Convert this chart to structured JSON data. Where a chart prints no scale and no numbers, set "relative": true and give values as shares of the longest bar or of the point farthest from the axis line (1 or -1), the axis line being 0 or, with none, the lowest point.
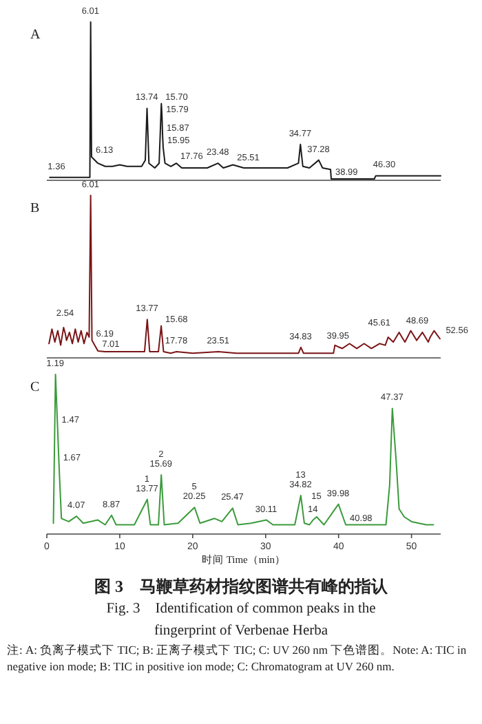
{
  "chart_data": [
    {
      "type": "line",
      "title": "A",
      "relative": true,
      "xlim": [
        0,
        54
      ],
      "tick_labels": false,
      "series": [
        {
          "color": "#1a1a1a",
          "x": [
            0.4,
            1.36,
            5.85,
            5.9,
            6.01,
            6.13,
            7,
            8,
            9,
            10,
            11,
            12,
            13,
            13.5,
            13.74,
            14.0,
            14.8,
            15.4,
            15.7,
            15.79,
            15.87,
            15.95,
            16.2,
            17,
            17.76,
            18.5,
            20,
            22,
            23.48,
            24.2,
            25.51,
            27,
            30,
            33,
            34.5,
            34.77,
            35.1,
            36,
            37.28,
            37.8,
            38.9,
            38.99,
            44.9,
            45.1,
            46.3,
            54
          ],
          "values": [
            0.01,
            0.01,
            0.01,
            0.01,
            1.0,
            0.14,
            0.1,
            0.08,
            0.08,
            0.09,
            0.08,
            0.08,
            0.08,
            0.12,
            0.45,
            0.1,
            0.07,
            0.1,
            0.48,
            0.4,
            0.28,
            0.2,
            0.1,
            0.08,
            0.1,
            0.07,
            0.07,
            0.07,
            0.1,
            0.07,
            0.09,
            0.07,
            0.07,
            0.07,
            0.1,
            0.22,
            0.08,
            0.07,
            0.12,
            0.07,
            0.06,
            0.0,
            0.0,
            0.02,
            0.02,
            0.02
          ]
        }
      ],
      "annotations": [
        {
          "text": "6.01",
          "x": 6.01,
          "y": 1.0
        },
        {
          "text": "1.36",
          "x": 1.36,
          "y": 0.01
        },
        {
          "text": "6.13",
          "x": 6.13,
          "y": 0.14
        },
        {
          "text": "13.74",
          "x": 13.74,
          "y": 0.45
        },
        {
          "text": "15.70",
          "x": 15.7,
          "y": 0.48
        },
        {
          "text": "15.79",
          "x": 15.79,
          "y": 0.4
        },
        {
          "text": "15.87",
          "x": 15.87,
          "y": 0.28
        },
        {
          "text": "15.95",
          "x": 15.95,
          "y": 0.2
        },
        {
          "text": "17.76",
          "x": 17.76,
          "y": 0.1
        },
        {
          "text": "23.48",
          "x": 23.48,
          "y": 0.1
        },
        {
          "text": "25.51",
          "x": 25.51,
          "y": 0.09
        },
        {
          "text": "34.77",
          "x": 34.77,
          "y": 0.22
        },
        {
          "text": "37.28",
          "x": 37.28,
          "y": 0.12
        },
        {
          "text": "38.99",
          "x": 38.99,
          "y": 0.0
        },
        {
          "text": "46.30",
          "x": 46.3,
          "y": 0.02
        }
      ]
    },
    {
      "type": "line",
      "title": "B",
      "relative": true,
      "xlim": [
        0,
        54
      ],
      "tick_labels": false,
      "series": [
        {
          "color": "#7a1416",
          "x": [
            0.3,
            0.7,
            1.1,
            1.5,
            1.9,
            2.3,
            2.54,
            2.7,
            3.1,
            3.5,
            3.9,
            4.3,
            4.7,
            5.1,
            5.5,
            5.8,
            6.01,
            6.19,
            7.01,
            8,
            10,
            12,
            13.4,
            13.77,
            14.1,
            15.3,
            15.68,
            16.0,
            17,
            17.78,
            20,
            23.51,
            26,
            30,
            34.5,
            34.83,
            35.2,
            38,
            39.3,
            39.5,
            39.95,
            40.5,
            41.5,
            42.5,
            43.5,
            44.5,
            45.61,
            46.4,
            46.8,
            47.5,
            48.3,
            48.69,
            49.1,
            49.9,
            50.7,
            51.5,
            52.3,
            52.56,
            53.1,
            53.9
          ],
          "values": [
            0.08,
            0.17,
            0.09,
            0.16,
            0.07,
            0.18,
            0.14,
            0.1,
            0.15,
            0.08,
            0.17,
            0.09,
            0.16,
            0.08,
            0.15,
            0.12,
            1.0,
            0.1,
            0.034,
            0.03,
            0.03,
            0.03,
            0.03,
            0.23,
            0.03,
            0.03,
            0.19,
            0.03,
            0.02,
            0.03,
            0.02,
            0.03,
            0.02,
            0.02,
            0.02,
            0.057,
            0.02,
            0.02,
            0.02,
            0.07,
            0.06,
            0.05,
            0.08,
            0.05,
            0.08,
            0.05,
            0.08,
            0.07,
            0.12,
            0.09,
            0.15,
            0.12,
            0.09,
            0.16,
            0.1,
            0.15,
            0.09,
            0.12,
            0.16,
            0.11
          ]
        }
      ],
      "annotations": [
        {
          "text": "6.01",
          "x": 6.01,
          "y": 1.0
        },
        {
          "text": "2.54",
          "x": 2.54,
          "y": 0.14
        },
        {
          "text": "6.19",
          "x": 6.19,
          "y": 0.1
        },
        {
          "text": "7.01",
          "x": 7.01,
          "y": 0.034
        },
        {
          "text": "13.77",
          "x": 13.77,
          "y": 0.23
        },
        {
          "text": "15.68",
          "x": 15.68,
          "y": 0.19
        },
        {
          "text": "17.78",
          "x": 17.78,
          "y": 0.03
        },
        {
          "text": "23.51",
          "x": 23.51,
          "y": 0.03
        },
        {
          "text": "34.83",
          "x": 34.83,
          "y": 0.057
        },
        {
          "text": "39.95",
          "x": 39.95,
          "y": 0.06
        },
        {
          "text": "45.61",
          "x": 45.61,
          "y": 0.08
        },
        {
          "text": "48.69",
          "x": 48.69,
          "y": 0.12
        },
        {
          "text": "52.56",
          "x": 52.56,
          "y": 0.12
        }
      ]
    },
    {
      "type": "line",
      "title": "C",
      "relative": true,
      "xlabel": "时间 Time（min）",
      "xlim": [
        0,
        54
      ],
      "xticks": [
        0,
        10,
        20,
        30,
        40,
        50
      ],
      "tick_labels": "x",
      "series": [
        {
          "color": "#3a9a3a",
          "x": [
            0.9,
            1.19,
            1.47,
            1.67,
            2.0,
            3,
            4.07,
            5,
            7,
            8,
            8.87,
            9.5,
            12,
            13.77,
            14.2,
            15.3,
            15.69,
            16.1,
            18,
            20.25,
            21,
            23,
            24,
            25.47,
            26.2,
            28,
            30.11,
            31,
            34,
            34.82,
            35.3,
            36,
            36.5,
            37,
            38,
            39.98,
            40.98,
            46.5,
            47.0,
            47.37,
            47.9,
            48.3,
            49,
            50,
            52,
            53
          ],
          "values": [
            0.06,
            1.0,
            0.67,
            0.43,
            0.09,
            0.07,
            0.104,
            0.06,
            0.08,
            0.05,
            0.11,
            0.05,
            0.05,
            0.21,
            0.05,
            0.05,
            0.365,
            0.05,
            0.06,
            0.16,
            0.06,
            0.09,
            0.07,
            0.155,
            0.05,
            0.06,
            0.08,
            0.05,
            0.05,
            0.235,
            0.06,
            0.05,
            0.08,
            0.1,
            0.05,
            0.18,
            0.05,
            0.05,
            0.3,
            0.785,
            0.45,
            0.15,
            0.1,
            0.07,
            0.05,
            0.05
          ]
        }
      ],
      "annotations": [
        {
          "text": "1.19",
          "x": 1.19,
          "y": 1.0
        },
        {
          "text": "1.47",
          "x": 1.47,
          "y": 0.67
        },
        {
          "text": "1.67",
          "x": 1.67,
          "y": 0.43
        },
        {
          "text": "4.07",
          "x": 4.07,
          "y": 0.104
        },
        {
          "text": "8.87",
          "x": 8.87,
          "y": 0.11
        },
        {
          "text": "13.77",
          "x": 13.77,
          "y": 0.21
        },
        {
          "text": "1",
          "x": 13.77,
          "y": 0.21
        },
        {
          "text": "15.69",
          "x": 15.69,
          "y": 0.365
        },
        {
          "text": "2",
          "x": 15.69,
          "y": 0.365
        },
        {
          "text": "20.25",
          "x": 20.25,
          "y": 0.16
        },
        {
          "text": "5",
          "x": 20.25,
          "y": 0.16
        },
        {
          "text": "25.47",
          "x": 25.47,
          "y": 0.155
        },
        {
          "text": "30.11",
          "x": 30.11,
          "y": 0.08
        },
        {
          "text": "34.82",
          "x": 34.82,
          "y": 0.235
        },
        {
          "text": "13",
          "x": 34.82,
          "y": 0.235
        },
        {
          "text": "14",
          "x": 36.5,
          "y": 0.08
        },
        {
          "text": "15",
          "x": 37,
          "y": 0.1
        },
        {
          "text": "39.98",
          "x": 39.98,
          "y": 0.18
        },
        {
          "text": "40.98",
          "x": 40.98,
          "y": 0.05
        },
        {
          "text": "47.37",
          "x": 47.37,
          "y": 0.785
        },
        "图 3　马鞭草药材指纹图谱共有峰的指认",
        "Fig. 3　Identification of common peaks in the fingerprint of Verbenae Herba",
        "注: A: 负离子模式下 TIC; B: 正离子模式下 TIC; C: UV 260 nm 下色谱图。Note: A: TIC in negative ion mode; B: TIC in positive ion mode; C: Chromatogram at UV 260 nm."
      ]
    }
  ]
}
